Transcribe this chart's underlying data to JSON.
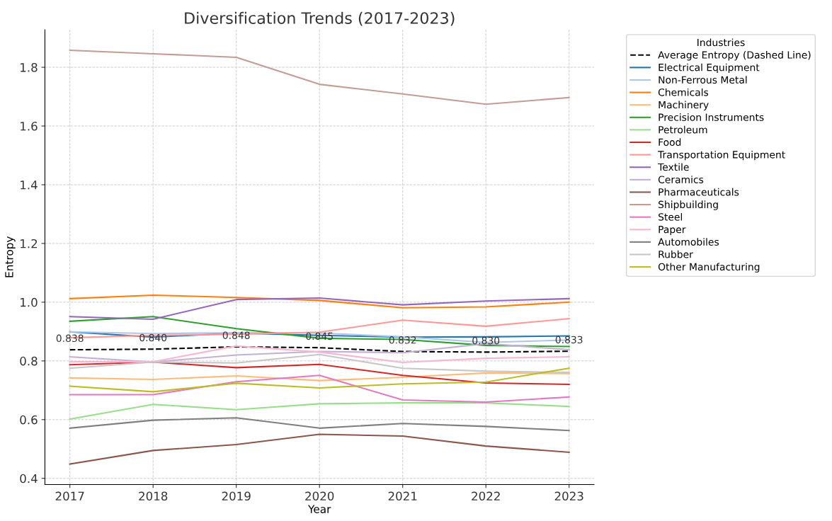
{
  "chart_data": {
    "type": "line",
    "title": "Diversification Trends (2017-2023)",
    "xlabel": "Year",
    "ylabel": "Entropy",
    "legend_title": "Industries",
    "legend": "right",
    "grid": true,
    "x": [
      2017,
      2018,
      2019,
      2020,
      2021,
      2022,
      2023
    ],
    "xlim": [
      2016.7,
      2023.3
    ],
    "xticks": [
      2017,
      2018,
      2019,
      2020,
      2021,
      2022,
      2023
    ],
    "ylim": [
      0.379,
      1.928
    ],
    "yticks": [
      {
        "value": 0.4,
        "label": "0.4"
      },
      {
        "value": 0.6,
        "label": "0.6"
      },
      {
        "value": 0.8,
        "label": "0.8"
      },
      {
        "value": 1.0,
        "label": "1.0"
      },
      {
        "value": 1.2,
        "label": "1.2"
      },
      {
        "value": 1.4,
        "label": "1.4"
      },
      {
        "value": 1.6,
        "label": "1.6"
      },
      {
        "value": 1.8,
        "label": "1.8"
      }
    ],
    "series": [
      {
        "name": "Average Entropy (Dashed Line)",
        "color": "#000000",
        "line_style": "dashed",
        "values": [
          0.838,
          0.84,
          0.848,
          0.845,
          0.832,
          0.83,
          0.833
        ],
        "value_labels": [
          "0.838",
          "0.840",
          "0.848",
          "0.845",
          "0.832",
          "0.830",
          "0.833"
        ]
      },
      {
        "name": "Electrical Equipment",
        "color": "#1f77b4",
        "values": [
          0.899,
          0.881,
          0.895,
          0.887,
          0.881,
          0.882,
          0.885
        ]
      },
      {
        "name": "Non-Ferrous Metal",
        "color": "#aec7e8",
        "values": [
          0.899,
          0.893,
          0.896,
          0.895,
          0.882,
          0.863,
          0.871
        ]
      },
      {
        "name": "Chemicals",
        "color": "#ff7f0e",
        "values": [
          1.012,
          1.024,
          1.016,
          1.006,
          0.981,
          0.984,
          1.0
        ]
      },
      {
        "name": "Machinery",
        "color": "#ffbb78",
        "values": [
          0.742,
          0.737,
          0.749,
          0.733,
          0.744,
          0.759,
          0.757
        ]
      },
      {
        "name": "Precision Instruments",
        "color": "#2ca02c",
        "values": [
          0.935,
          0.951,
          0.91,
          0.877,
          0.873,
          0.853,
          0.849
        ]
      },
      {
        "name": "Petroleum",
        "color": "#98df8a",
        "values": [
          0.602,
          0.652,
          0.634,
          0.654,
          0.657,
          0.657,
          0.645
        ]
      },
      {
        "name": "Food",
        "color": "#d62728",
        "values": [
          0.787,
          0.796,
          0.777,
          0.788,
          0.751,
          0.725,
          0.72
        ]
      },
      {
        "name": "Transportation Equipment",
        "color": "#ff9896",
        "values": [
          0.879,
          0.887,
          0.891,
          0.898,
          0.939,
          0.918,
          0.944
        ]
      },
      {
        "name": "Textile",
        "color": "#9467bd",
        "values": [
          0.951,
          0.942,
          1.009,
          1.014,
          0.991,
          1.004,
          1.012
        ]
      },
      {
        "name": "Ceramics",
        "color": "#c5b0d5",
        "values": [
          0.814,
          0.796,
          0.82,
          0.832,
          0.828,
          0.859,
          0.838
        ]
      },
      {
        "name": "Pharmaceuticals",
        "color": "#8c564b",
        "values": [
          0.449,
          0.495,
          0.515,
          0.55,
          0.544,
          0.51,
          0.489
        ]
      },
      {
        "name": "Shipbuilding",
        "color": "#c49c94",
        "values": [
          1.858,
          1.846,
          1.834,
          1.742,
          1.709,
          1.674,
          1.697
        ]
      },
      {
        "name": "Steel",
        "color": "#e377c2",
        "values": [
          0.685,
          0.685,
          0.729,
          0.751,
          0.667,
          0.66,
          0.677
        ]
      },
      {
        "name": "Paper",
        "color": "#f7b6d2",
        "values": [
          0.797,
          0.797,
          0.851,
          0.83,
          0.795,
          0.809,
          0.814
        ]
      },
      {
        "name": "Automobiles",
        "color": "#7f7f7f",
        "values": [
          0.571,
          0.598,
          0.606,
          0.571,
          0.587,
          0.577,
          0.563
        ]
      },
      {
        "name": "Rubber",
        "color": "#c7c7c7",
        "values": [
          0.775,
          0.796,
          0.793,
          0.822,
          0.775,
          0.765,
          0.761
        ]
      },
      {
        "name": "Other Manufacturing",
        "color": "#bcbd22",
        "values": [
          0.714,
          0.695,
          0.724,
          0.708,
          0.722,
          0.728,
          0.775
        ]
      }
    ]
  }
}
